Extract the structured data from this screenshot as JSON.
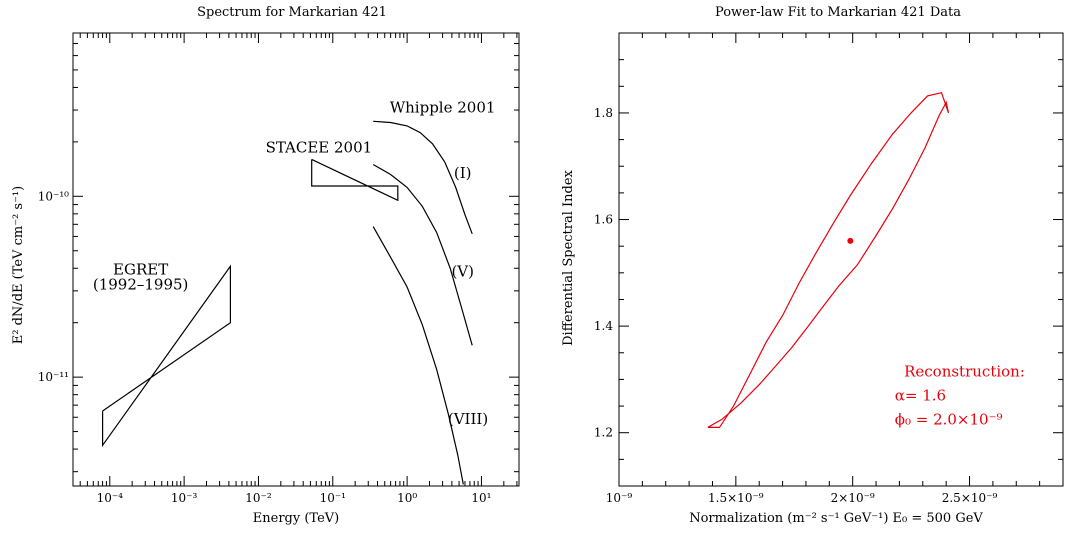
{
  "chart_data": [
    {
      "type": "line",
      "title": "Spectrum for Markarian 421",
      "xlabel": "Energy (TeV)",
      "ylabel": "E² dN/dE  (TeV cm⁻² s⁻¹)",
      "xscale": "log",
      "yscale": "log",
      "xlim": [
        3.2e-05,
        32
      ],
      "ylim": [
        2.5e-12,
        8e-10
      ],
      "xticks": [
        {
          "value": 0.0001,
          "label": "10⁻⁴"
        },
        {
          "value": 0.001,
          "label": "10⁻³"
        },
        {
          "value": 0.01,
          "label": "10⁻²"
        },
        {
          "value": 0.1,
          "label": "10⁻¹"
        },
        {
          "value": 1,
          "label": "10⁰"
        },
        {
          "value": 10,
          "label": "10¹"
        }
      ],
      "yticks": [
        {
          "value": 1e-11,
          "label": "10⁻¹¹"
        },
        {
          "value": 1e-10,
          "label": "10⁻¹⁰"
        }
      ],
      "grid": false,
      "shapes": [
        {
          "name": "EGRET",
          "kind": "bowtie",
          "points": [
            [
              8e-05,
              6.5e-12
            ],
            [
              0.0042,
              2e-11
            ],
            [
              0.0042,
              4.1e-11
            ],
            [
              8e-05,
              4.2e-12
            ],
            [
              8e-05,
              6.5e-12
            ]
          ]
        },
        {
          "name": "STACEE",
          "kind": "bowtie",
          "points": [
            [
              0.052,
              1.6e-10
            ],
            [
              0.052,
              1.14e-10
            ],
            [
              0.75,
              1.14e-10
            ],
            [
              0.75,
              9.5e-11
            ],
            [
              0.052,
              1.6e-10
            ]
          ]
        }
      ],
      "series": [
        {
          "name": "(I)",
          "x": [
            0.35,
            0.6,
            1.0,
            1.5,
            2.2,
            3.2,
            4.5,
            6.0,
            7.5
          ],
          "y": [
            2.6e-10,
            2.56e-10,
            2.45e-10,
            2.25e-10,
            1.95e-10,
            1.55e-10,
            1.12e-10,
            7.9e-11,
            6.2e-11
          ]
        },
        {
          "name": "(V)",
          "x": [
            0.35,
            0.6,
            1.0,
            1.6,
            2.5,
            3.8,
            5.5,
            7.5
          ],
          "y": [
            1.5e-10,
            1.32e-10,
            1.12e-10,
            8.8e-11,
            6.3e-11,
            4e-11,
            2.35e-11,
            1.5e-11
          ]
        },
        {
          "name": "(VIII)",
          "x": [
            0.35,
            0.6,
            1.0,
            1.6,
            2.5,
            3.6,
            4.8,
            5.7
          ],
          "y": [
            6.8e-11,
            4.6e-11,
            3.15e-11,
            1.95e-11,
            1.1e-11,
            6.2e-12,
            3.7e-12,
            2.55e-12
          ]
        }
      ],
      "annotations": [
        {
          "text": "Whipple 2001",
          "x": 3.0,
          "y": 2.9e-10
        },
        {
          "text": "STACEE 2001",
          "x": 0.065,
          "y": 1.75e-10
        },
        {
          "text": "EGRET",
          "x": 0.00026,
          "y": 3.7e-11
        },
        {
          "text": "(1992–1995)",
          "x": 0.00026,
          "y": 3.05e-11
        },
        {
          "text": "(I)",
          "x": 5.6,
          "y": 1.26e-10
        },
        {
          "text": "(V)",
          "x": 5.6,
          "y": 3.6e-11
        },
        {
          "text": "(VIII)",
          "x": 6.6,
          "y": 5.5e-12
        }
      ]
    },
    {
      "type": "scatter",
      "title": "Power-law Fit to Markarian 421 Data",
      "xlabel": "Normalization (m⁻² s⁻¹ GeV⁻¹)  E₀ = 500 GeV",
      "ylabel": "Differential Spectral Index",
      "xlim": [
        1e-09,
        2.9e-09
      ],
      "ylim": [
        1.1,
        1.95
      ],
      "xticks": [
        {
          "value": 1e-09,
          "label": "10⁻⁹"
        },
        {
          "value": 1.5e-09,
          "label": "1.5×10⁻⁹"
        },
        {
          "value": 2e-09,
          "label": "2×10⁻⁹"
        },
        {
          "value": 2.5e-09,
          "label": "2.5×10⁻⁹"
        }
      ],
      "yticks": [
        {
          "value": 1.2,
          "label": "1.2"
        },
        {
          "value": 1.4,
          "label": "1.4"
        },
        {
          "value": 1.6,
          "label": "1.6"
        },
        {
          "value": 1.8,
          "label": "1.8"
        }
      ],
      "grid": false,
      "best_fit": {
        "x": 1.99e-09,
        "y": 1.56
      },
      "contour": {
        "x": [
          1.38e-09,
          1.44e-09,
          1.52e-09,
          1.6e-09,
          1.67e-09,
          1.74e-09,
          1.81e-09,
          1.87e-09,
          1.94e-09,
          2.02e-09,
          2.1e-09,
          2.17e-09,
          2.24e-09,
          2.31e-09,
          2.37e-09,
          2.4e-09,
          2.41e-09,
          2.38e-09,
          2.32e-09,
          2.25e-09,
          2.17e-09,
          2.08e-09,
          1.99e-09,
          1.92e-09,
          1.84e-09,
          1.77e-09,
          1.7e-09,
          1.63e-09,
          1.56e-09,
          1.49e-09,
          1.43e-09,
          1.38e-09
        ],
        "y": [
          1.21,
          1.225,
          1.255,
          1.29,
          1.325,
          1.36,
          1.4,
          1.435,
          1.475,
          1.515,
          1.57,
          1.62,
          1.675,
          1.735,
          1.795,
          1.82,
          1.8,
          1.838,
          1.832,
          1.8,
          1.76,
          1.705,
          1.645,
          1.595,
          1.535,
          1.48,
          1.42,
          1.37,
          1.31,
          1.25,
          1.21,
          1.21
        ]
      },
      "annotations": [
        {
          "text": "Reconstruction:",
          "x": 2.22e-09,
          "y": 1.305
        },
        {
          "text": "α= 1.6",
          "x": 2.18e-09,
          "y": 1.26
        },
        {
          "text": "ϕ₀ = 2.0×10⁻⁹",
          "x": 2.18e-09,
          "y": 1.215
        }
      ],
      "color": "#e8000b"
    }
  ]
}
